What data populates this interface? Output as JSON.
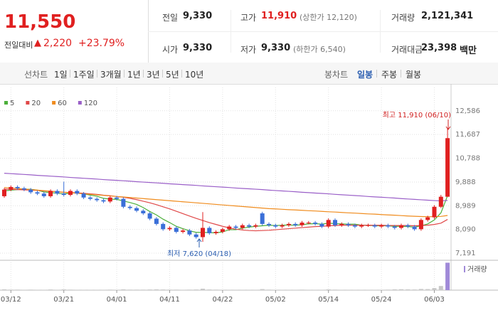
{
  "header": {
    "price": "11,550",
    "change_label": "전일대비",
    "change": "2,220",
    "change_pct": "+23.79%"
  },
  "stats": [
    {
      "label": "전일",
      "value": "9,330"
    },
    {
      "label": "고가",
      "value": "11,910",
      "note": "(상한가 12,120)"
    },
    {
      "label": "거래량",
      "value": "2,121,341"
    },
    {
      "label": "시가",
      "value": "9,330"
    },
    {
      "label": "저가",
      "value": "9,330",
      "note": "(하한가 6,540)"
    },
    {
      "label": "거래대금",
      "value": "23,398",
      "note": "백만"
    }
  ],
  "tabs": {
    "line_label": "선차트",
    "periods": [
      "1일",
      "1주일",
      "3개월",
      "1년",
      "3년",
      "5년",
      "10년"
    ],
    "candle_label": "봉차트",
    "candle_types": [
      "일봉",
      "주봉",
      "월봉"
    ],
    "selected": "일봉"
  },
  "chart_data": {
    "type": "candlestick",
    "up_color": "#e02020",
    "down_color": "#3a6fd8",
    "categories": [
      null,
      "03/12",
      null,
      null,
      null,
      null,
      null,
      null,
      null,
      "03/21",
      null,
      null,
      null,
      null,
      null,
      null,
      null,
      "04/01",
      null,
      null,
      null,
      null,
      null,
      null,
      null,
      "04/11",
      null,
      null,
      null,
      null,
      null,
      null,
      null,
      "04/22",
      null,
      null,
      null,
      null,
      null,
      null,
      null,
      "05/02",
      null,
      null,
      null,
      null,
      null,
      null,
      null,
      "05/14",
      null,
      null,
      null,
      null,
      null,
      null,
      null,
      "05/24",
      null,
      null,
      null,
      null,
      null,
      null,
      null,
      "06/03",
      null,
      null
    ],
    "candles": [
      [
        9350,
        9660,
        9290,
        9600
      ],
      [
        9600,
        9760,
        9540,
        9700
      ],
      [
        9700,
        9760,
        9590,
        9650
      ],
      [
        9650,
        9710,
        9540,
        9600
      ],
      [
        9600,
        9660,
        9440,
        9500
      ],
      [
        9500,
        9560,
        9390,
        9450
      ],
      [
        9450,
        9510,
        9290,
        9350
      ],
      [
        9350,
        9610,
        9290,
        9550
      ],
      [
        9550,
        9610,
        9390,
        9450
      ],
      [
        9450,
        9900,
        9340,
        9400
      ],
      [
        9400,
        9610,
        9340,
        9550
      ],
      [
        9550,
        9610,
        9390,
        9450
      ],
      [
        9450,
        9510,
        9240,
        9300
      ],
      [
        9300,
        9360,
        9190,
        9250
      ],
      [
        9250,
        9310,
        9140,
        9200
      ],
      [
        9200,
        9260,
        9090,
        9150
      ],
      [
        9150,
        9360,
        9090,
        9300
      ],
      [
        9300,
        9360,
        9190,
        9250
      ],
      [
        9250,
        9310,
        8890,
        8950
      ],
      [
        8950,
        9010,
        8840,
        8900
      ],
      [
        8900,
        8960,
        8740,
        8800
      ],
      [
        8800,
        8860,
        8640,
        8700
      ],
      [
        8700,
        8760,
        8440,
        8500
      ],
      [
        8500,
        8560,
        8240,
        8300
      ],
      [
        8300,
        8360,
        8040,
        8100
      ],
      [
        8100,
        8210,
        8040,
        8150
      ],
      [
        8150,
        8210,
        7940,
        8000
      ],
      [
        8000,
        8110,
        7940,
        8050
      ],
      [
        8050,
        8110,
        7840,
        7900
      ],
      [
        7900,
        7960,
        7740,
        7800
      ],
      [
        7800,
        8750,
        7620,
        8150
      ],
      [
        8150,
        8210,
        7890,
        7950
      ],
      [
        7950,
        8060,
        7890,
        8000
      ],
      [
        8000,
        8160,
        7940,
        8100
      ],
      [
        8100,
        8260,
        8040,
        8200
      ],
      [
        8200,
        8260,
        8090,
        8150
      ],
      [
        8150,
        8310,
        8090,
        8250
      ],
      [
        8250,
        8310,
        8140,
        8200
      ],
      [
        8200,
        8310,
        8140,
        8250
      ],
      [
        8700,
        8760,
        8240,
        8300
      ],
      [
        8300,
        8360,
        8190,
        8250
      ],
      [
        8250,
        8310,
        8140,
        8200
      ],
      [
        8200,
        8310,
        8140,
        8250
      ],
      [
        8250,
        8360,
        8190,
        8300
      ],
      [
        8300,
        8360,
        8190,
        8250
      ],
      [
        8250,
        8410,
        8190,
        8350
      ],
      [
        8350,
        8410,
        8290,
        8350
      ],
      [
        8350,
        8410,
        8240,
        8300
      ],
      [
        8300,
        8360,
        8140,
        8200
      ],
      [
        8200,
        8510,
        8140,
        8450
      ],
      [
        8450,
        8510,
        8190,
        8250
      ],
      [
        8250,
        8360,
        8190,
        8300
      ],
      [
        8300,
        8360,
        8190,
        8250
      ],
      [
        8250,
        8310,
        8140,
        8200
      ],
      [
        8200,
        8310,
        8140,
        8250
      ],
      [
        8250,
        8310,
        8190,
        8250
      ],
      [
        8250,
        8310,
        8140,
        8200
      ],
      [
        8200,
        8310,
        8140,
        8250
      ],
      [
        8250,
        8310,
        8140,
        8200
      ],
      [
        8200,
        8260,
        8090,
        8150
      ],
      [
        8150,
        8310,
        8090,
        8250
      ],
      [
        8250,
        8310,
        8140,
        8200
      ],
      [
        8200,
        8260,
        8040,
        8100
      ],
      [
        8100,
        8510,
        8040,
        8450
      ],
      [
        8450,
        8610,
        8390,
        8550
      ],
      [
        8550,
        9010,
        8490,
        8950
      ],
      [
        8950,
        9400,
        8900,
        9330
      ],
      [
        9330,
        11910,
        9330,
        11550
      ]
    ],
    "ma": [
      {
        "name": "5",
        "color": "#4caf3a",
        "values": [
          9550,
          9580,
          9600,
          9620,
          9610,
          9580,
          9510,
          9490,
          9460,
          9440,
          9460,
          9480,
          9440,
          9390,
          9350,
          9270,
          9240,
          9230,
          9170,
          9110,
          9040,
          8920,
          8770,
          8640,
          8480,
          8350,
          8210,
          8120,
          8040,
          7980,
          7980,
          7970,
          7960,
          8000,
          8080,
          8080,
          8140,
          8180,
          8210,
          8230,
          8250,
          8240,
          8250,
          8260,
          8250,
          8270,
          8300,
          8310,
          8290,
          8330,
          8310,
          8300,
          8290,
          8290,
          8250,
          8250,
          8230,
          8230,
          8230,
          8210,
          8210,
          8200,
          8180,
          8230,
          8300,
          8450,
          8720,
          9370
        ]
      },
      {
        "name": "20",
        "color": "#e04848",
        "values": [
          9620,
          9610,
          9600,
          9590,
          9580,
          9570,
          9550,
          9540,
          9520,
          9500,
          9490,
          9480,
          9460,
          9440,
          9420,
          9390,
          9370,
          9340,
          9310,
          9270,
          9220,
          9160,
          9100,
          9030,
          8950,
          8870,
          8780,
          8690,
          8600,
          8510,
          8430,
          8350,
          8280,
          8210,
          8150,
          8100,
          8070,
          8050,
          8040,
          8050,
          8060,
          8080,
          8100,
          8120,
          8140,
          8160,
          8180,
          8200,
          8210,
          8230,
          8240,
          8250,
          8250,
          8250,
          8250,
          8250,
          8250,
          8250,
          8240,
          8240,
          8240,
          8240,
          8230,
          8240,
          8250,
          8280,
          8330,
          8470
        ]
      },
      {
        "name": "60",
        "color": "#f08c1e",
        "values": [
          9680,
          9660,
          9640,
          9620,
          9600,
          9580,
          9560,
          9540,
          9520,
          9500,
          9480,
          9460,
          9440,
          9420,
          9400,
          9380,
          9360,
          9340,
          9320,
          9300,
          9280,
          9260,
          9240,
          9220,
          9200,
          9180,
          9160,
          9140,
          9120,
          9100,
          9080,
          9060,
          9040,
          9020,
          9000,
          8980,
          8960,
          8940,
          8920,
          8900,
          8880,
          8870,
          8855,
          8840,
          8830,
          8815,
          8800,
          8790,
          8775,
          8760,
          8750,
          8735,
          8720,
          8710,
          8695,
          8680,
          8670,
          8655,
          8640,
          8630,
          8615,
          8600,
          8590,
          8580,
          8575,
          8575,
          8585,
          8620
        ]
      },
      {
        "name": "120",
        "color": "#9a5fc8",
        "values": [
          10220,
          10205,
          10190,
          10175,
          10160,
          10140,
          10125,
          10110,
          10095,
          10080,
          10060,
          10045,
          10030,
          10015,
          10000,
          9980,
          9965,
          9950,
          9935,
          9920,
          9900,
          9885,
          9870,
          9855,
          9840,
          9820,
          9805,
          9790,
          9775,
          9760,
          9740,
          9725,
          9710,
          9695,
          9680,
          9660,
          9645,
          9630,
          9615,
          9600,
          9580,
          9565,
          9550,
          9535,
          9520,
          9500,
          9485,
          9470,
          9455,
          9440,
          9420,
          9405,
          9390,
          9375,
          9360,
          9340,
          9325,
          9310,
          9295,
          9280,
          9260,
          9245,
          9230,
          9215,
          9200,
          9185,
          9175,
          9190
        ]
      }
    ],
    "ylim": [
      6950,
      13470
    ],
    "yticks": [
      {
        "value": 12586,
        "label": "12,586"
      },
      {
        "value": 11687,
        "label": "11,687"
      },
      {
        "value": 10788,
        "label": "10,788"
      },
      {
        "value": 9888,
        "label": "9,888"
      },
      {
        "value": 8989,
        "label": "8,989"
      },
      {
        "value": 8090,
        "label": "8,090"
      },
      {
        "value": 7191,
        "label": "7,191"
      }
    ],
    "volume_label": "거래량",
    "volume_color": "#a08ad8",
    "vlim": [
      0,
      2200000
    ],
    "volume": [
      60000,
      40000,
      40000,
      30000,
      40000,
      30000,
      30000,
      50000,
      30000,
      60000,
      40000,
      30000,
      30000,
      30000,
      30000,
      30000,
      40000,
      30000,
      60000,
      40000,
      40000,
      40000,
      50000,
      60000,
      50000,
      40000,
      40000,
      30000,
      40000,
      50000,
      110000,
      50000,
      40000,
      30000,
      30000,
      30000,
      30000,
      30000,
      30000,
      80000,
      40000,
      30000,
      30000,
      30000,
      30000,
      40000,
      30000,
      30000,
      30000,
      60000,
      40000,
      30000,
      30000,
      30000,
      30000,
      30000,
      30000,
      30000,
      40000,
      60000,
      70000,
      60000,
      50000,
      90000,
      80000,
      160000,
      320000,
      2121341
    ],
    "annotations": [
      "최고 11,910 (06/10)",
      "최저 7,620 (04/18)"
    ]
  }
}
